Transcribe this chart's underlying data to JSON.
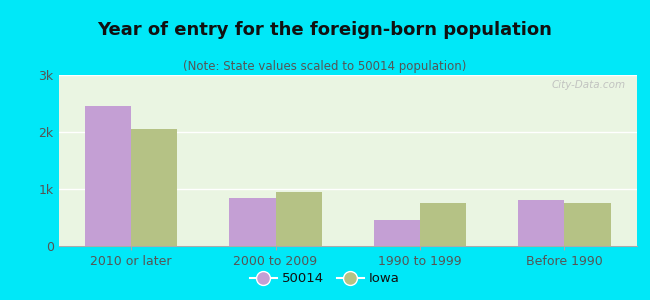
{
  "title": "Year of entry for the foreign-born population",
  "subtitle": "(Note: State values scaled to 50014 population)",
  "categories": [
    "2010 or later",
    "2000 to 2009",
    "1990 to 1999",
    "Before 1990"
  ],
  "values_50014": [
    2450,
    850,
    450,
    800
  ],
  "values_iowa": [
    2050,
    950,
    750,
    750
  ],
  "color_50014": "#c49fd4",
  "color_iowa": "#b5c285",
  "background_outer": "#00e8f8",
  "background_inner": "#eaf5e2",
  "ylim": [
    0,
    3000
  ],
  "yticks": [
    0,
    1000,
    2000,
    3000
  ],
  "ytick_labels": [
    "0",
    "1k",
    "2k",
    "3k"
  ],
  "legend_labels": [
    "50014",
    "Iowa"
  ],
  "watermark": "City-Data.com",
  "bar_width": 0.32
}
